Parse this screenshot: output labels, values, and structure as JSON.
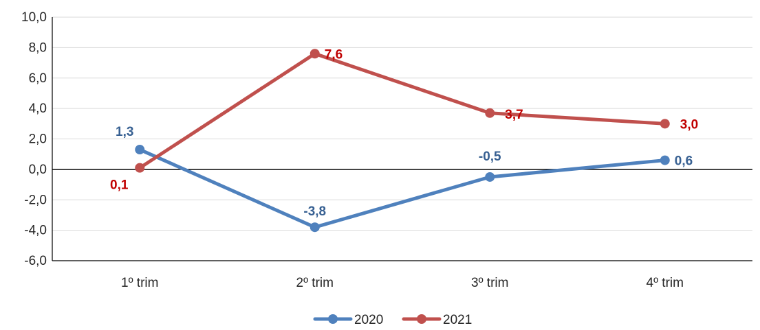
{
  "chart_data": {
    "type": "line",
    "categories": [
      "1º trim",
      "2º trim",
      "3º trim",
      "4º trim"
    ],
    "series": [
      {
        "name": "2020",
        "values": [
          1.3,
          -3.8,
          -0.5,
          0.6
        ],
        "labels": [
          "1,3",
          "-3,8",
          "-0,5",
          "0,6"
        ],
        "color": "#4F81BD",
        "label_color": "#376092"
      },
      {
        "name": "2021",
        "values": [
          0.1,
          7.6,
          3.7,
          3.0
        ],
        "labels": [
          "0,1",
          "7,6",
          "3,7",
          "3,0"
        ],
        "color": "#C0504D",
        "label_color": "#C00000"
      }
    ],
    "ylim": [
      -6,
      10
    ],
    "yticks": [
      10,
      8,
      6,
      4,
      2,
      0,
      -2,
      -4,
      -6
    ],
    "ytick_labels": [
      "10,0",
      "8,0",
      "6,0",
      "4,0",
      "2,0",
      "0,0",
      "-2,0",
      "-4,0",
      "-6,0"
    ],
    "grid": true,
    "legend_position": "bottom",
    "title": "",
    "xlabel": "",
    "ylabel": ""
  }
}
